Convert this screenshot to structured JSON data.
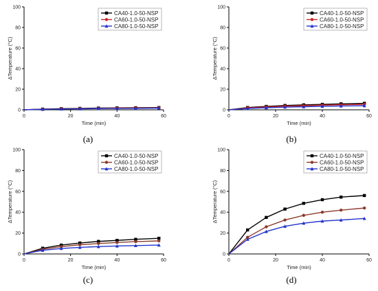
{
  "chart_data": [
    {
      "type": "line",
      "panel_label": "(a)",
      "xlabel": "Time (min)",
      "ylabel": "ΔTemperature (°C)",
      "xlim": [
        0,
        60
      ],
      "ylim": [
        0,
        100
      ],
      "xticks": [
        "0",
        "20",
        "40",
        "60"
      ],
      "yticks": [
        "0",
        "20",
        "40",
        "60",
        "80",
        "100"
      ],
      "legend": "top-right",
      "x": [
        0,
        8,
        16,
        24,
        32,
        40,
        48,
        58
      ],
      "series": [
        {
          "name": "CA40-1.0-50-NSP",
          "color": "#000000",
          "marker": "square",
          "values": [
            0,
            0.7,
            1.1,
            1.4,
            1.7,
            1.9,
            2.0,
            2.2
          ]
        },
        {
          "name": "CA60-1.0-50-NSP",
          "color": "#cc2222",
          "marker": "circle",
          "values": [
            0,
            0.6,
            0.9,
            1.2,
            1.4,
            1.6,
            1.7,
            1.9
          ]
        },
        {
          "name": "CA80-1.0-50-NSP",
          "color": "#2233cc",
          "marker": "triangle",
          "values": [
            0,
            0.5,
            0.8,
            1.0,
            1.2,
            1.3,
            1.4,
            1.6
          ]
        }
      ]
    },
    {
      "type": "line",
      "panel_label": "(b)",
      "xlabel": "Time (min)",
      "ylabel": "ΔTemperature (°C)",
      "xlim": [
        0,
        60
      ],
      "ylim": [
        0,
        100
      ],
      "xticks": [
        "0",
        "20",
        "40",
        "60"
      ],
      "yticks": [
        "0",
        "20",
        "40",
        "60",
        "80",
        "100"
      ],
      "legend": "top-right",
      "x": [
        0,
        8,
        16,
        24,
        32,
        40,
        48,
        58
      ],
      "series": [
        {
          "name": "CA40-1.0-50-NSP",
          "color": "#000000",
          "marker": "square",
          "values": [
            0,
            2.2,
            3.3,
            4.2,
            4.8,
            5.3,
            5.8,
            6.3
          ]
        },
        {
          "name": "CA60-1.0-50-NSP",
          "color": "#cc2222",
          "marker": "circle",
          "values": [
            0,
            1.8,
            2.8,
            3.5,
            4.0,
            4.5,
            4.9,
            5.3
          ]
        },
        {
          "name": "CA80-1.0-50-NSP",
          "color": "#2233cc",
          "marker": "triangle",
          "values": [
            0,
            1.3,
            2.0,
            2.6,
            3.0,
            3.4,
            3.7,
            4.0
          ]
        }
      ]
    },
    {
      "type": "line",
      "panel_label": "(c)",
      "xlabel": "Time (min)",
      "ylabel": "ΔTemperature (°C)",
      "xlim": [
        0,
        60
      ],
      "ylim": [
        0,
        100
      ],
      "xticks": [
        "0",
        "20",
        "40",
        "60"
      ],
      "yticks": [
        "0",
        "20",
        "40",
        "60",
        "80",
        "100"
      ],
      "legend": "top-right",
      "x": [
        0,
        8,
        16,
        24,
        32,
        40,
        48,
        58
      ],
      "series": [
        {
          "name": "CA40-1.0-50-NSP",
          "color": "#000000",
          "marker": "square",
          "values": [
            0,
            5.5,
            8.5,
            10.5,
            12.0,
            13.0,
            14.0,
            15.0
          ]
        },
        {
          "name": "CA60-1.0-50-NSP",
          "color": "#8b3a2a",
          "marker": "circle",
          "values": [
            0,
            4.5,
            7.0,
            8.8,
            10.0,
            11.0,
            11.8,
            12.5
          ]
        },
        {
          "name": "CA80-1.0-50-NSP",
          "color": "#2233cc",
          "marker": "triangle",
          "values": [
            0,
            3.5,
            5.2,
            6.3,
            7.0,
            7.6,
            8.0,
            8.5
          ]
        }
      ]
    },
    {
      "type": "line",
      "panel_label": "(d)",
      "xlabel": "Time (min)",
      "ylabel": "ΔTemperature (°C)",
      "xlim": [
        0,
        60
      ],
      "ylim": [
        0,
        100
      ],
      "xticks": [
        "0",
        "20",
        "40",
        "60"
      ],
      "yticks": [
        "0",
        "20",
        "40",
        "60",
        "80",
        "100"
      ],
      "legend": "top-right",
      "x": [
        0,
        8,
        16,
        24,
        32,
        40,
        48,
        58
      ],
      "series": [
        {
          "name": "CA40-1.0-50-NSP",
          "color": "#000000",
          "marker": "square",
          "values": [
            0,
            23,
            35,
            43,
            48.5,
            52,
            54.5,
            56
          ]
        },
        {
          "name": "CA60-1.0-50-NSP",
          "color": "#8b3a2a",
          "marker": "circle",
          "values": [
            0,
            16,
            26,
            32.5,
            37,
            40,
            42,
            44
          ]
        },
        {
          "name": "CA80-1.0-50-NSP",
          "color": "#2233cc",
          "marker": "triangle",
          "values": [
            0,
            14,
            21.5,
            26.5,
            29.5,
            31.5,
            32.5,
            34
          ]
        }
      ]
    }
  ]
}
